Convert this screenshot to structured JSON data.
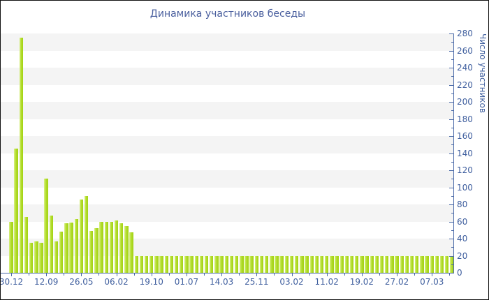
{
  "colors": {
    "bar_main": "#aeda25",
    "bar_highlight": "#d9ef8a",
    "axis_blue": "#4a6aa8",
    "label_blue": "#41609f",
    "title_blue": "#4a5f9e",
    "band_gray": "#f4f4f4",
    "background": "#ffffff"
  },
  "chart_data": {
    "type": "bar",
    "title": "Динамика участников беседы",
    "xlabel": "",
    "ylabel": "Число участников",
    "ylim": [
      0,
      280
    ],
    "ytick_step": 20,
    "ytick_minor_step": 10,
    "legend": "none",
    "grid": "alternating horizontal bands every 20 units, gray on top band",
    "x_tick_labels": [
      "30.12",
      "12.09",
      "26.05",
      "06.02",
      "19.10",
      "01.07",
      "14.03",
      "25.11",
      "03.02",
      "11.02",
      "19.02",
      "27.02",
      "07.03"
    ],
    "bars_per_label_interval": 7,
    "values": [
      60,
      145,
      275,
      65,
      35,
      37,
      35,
      110,
      67,
      37,
      48,
      58,
      59,
      63,
      86,
      90,
      49,
      52,
      60,
      60,
      60,
      61,
      58,
      55,
      47,
      20,
      20,
      20,
      20,
      20,
      20,
      20,
      20,
      20,
      20,
      20,
      20,
      20,
      20,
      20,
      20,
      20,
      20,
      20,
      20,
      20,
      20,
      20,
      20,
      20,
      20,
      20,
      20,
      20,
      20,
      20,
      20,
      20,
      20,
      20,
      20,
      20,
      20,
      20,
      20,
      20,
      20,
      20,
      20,
      20,
      20,
      20,
      20,
      20,
      20,
      20,
      20,
      20,
      20,
      20,
      20,
      20,
      20,
      20,
      20,
      20,
      20,
      20,
      20
    ]
  }
}
